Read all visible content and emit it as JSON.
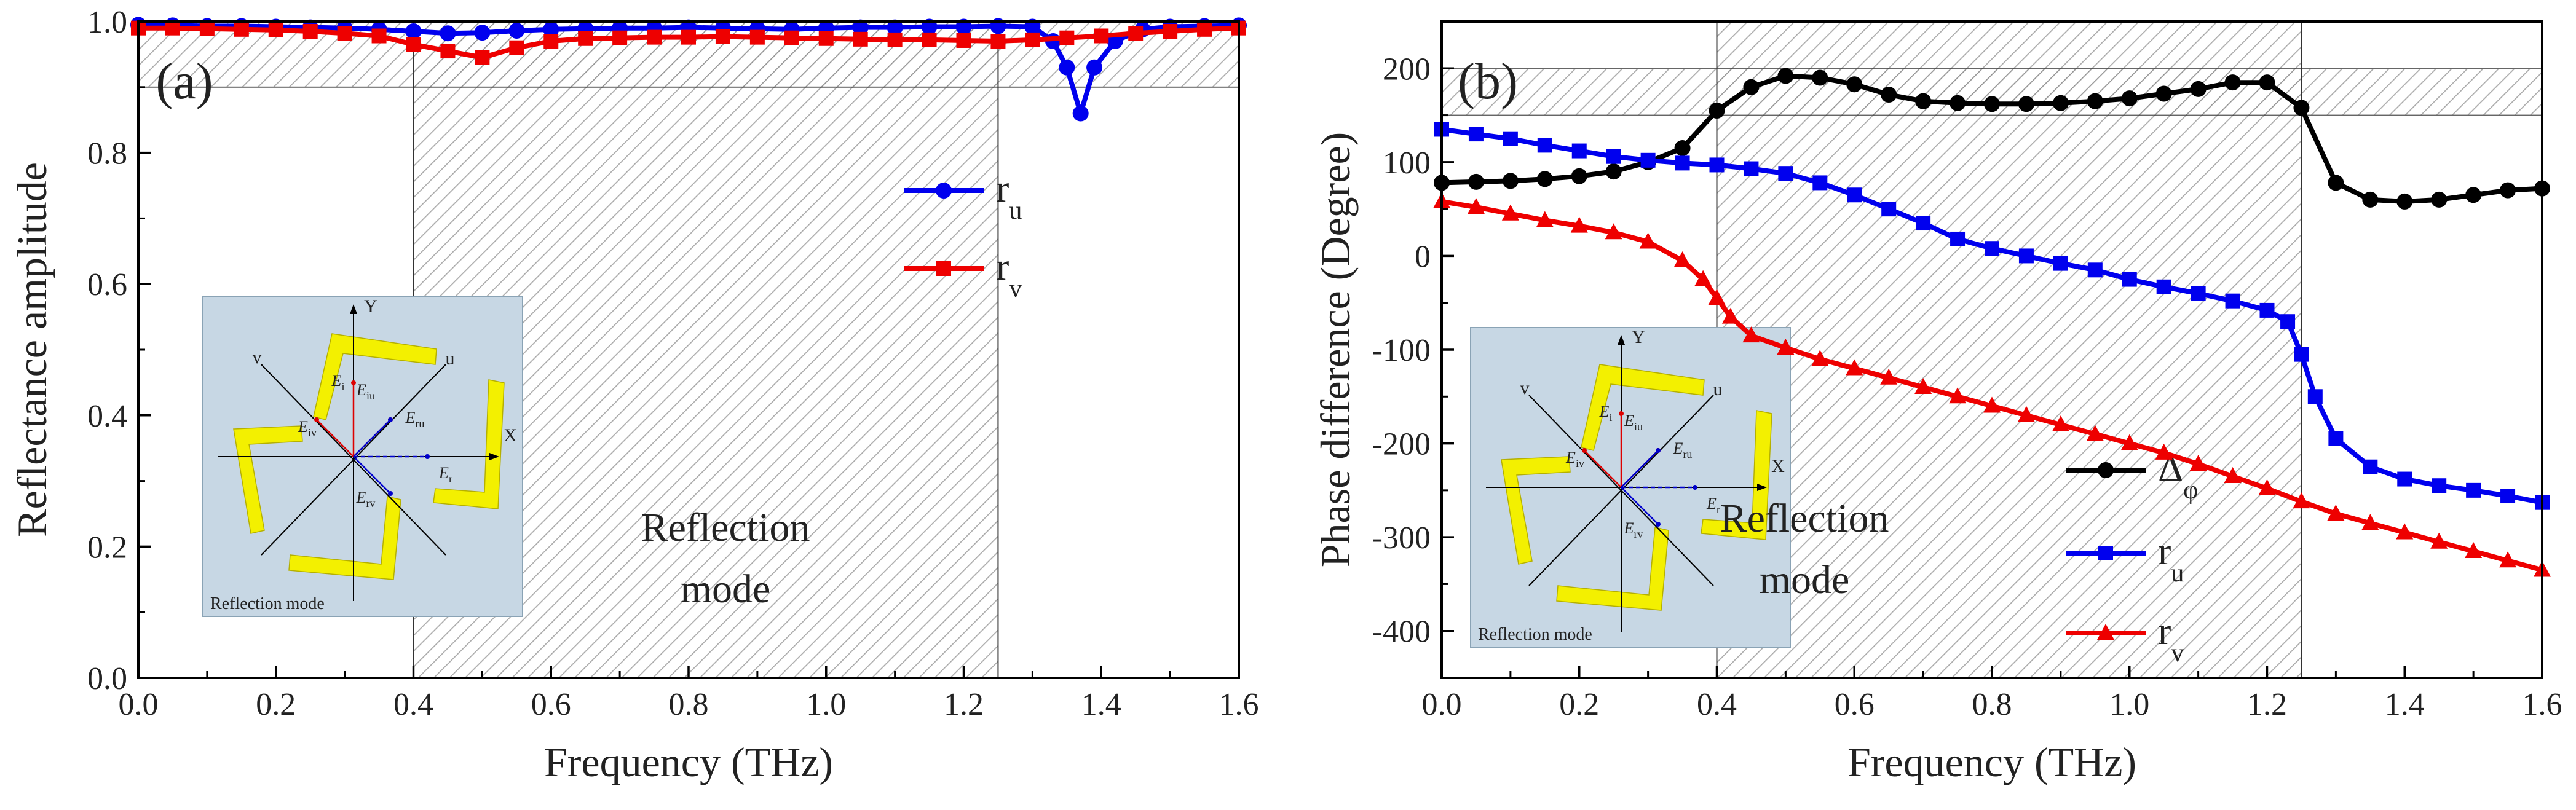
{
  "chart_data": [
    {
      "type": "line",
      "panel_label": "(a)",
      "xlabel": "Frequency (THz)",
      "ylabel": "Reflectance amplitude",
      "xlim": [
        0,
        1.6
      ],
      "ylim": [
        0,
        1.0
      ],
      "xticks": [
        "0.0",
        "0.2",
        "0.4",
        "0.6",
        "0.8",
        "1.0",
        "1.2",
        "1.4",
        "1.6"
      ],
      "yticks": [
        "0.0",
        "0.2",
        "0.4",
        "0.6",
        "0.8",
        "1.0"
      ],
      "shaded_band": {
        "y_from": 0.9,
        "y_to": 1.0,
        "hatch": true
      },
      "shaded_region": {
        "x_from": 0.4,
        "x_to": 1.25,
        "hatch": true
      },
      "region_label": [
        "Reflection",
        "mode"
      ],
      "series": [
        {
          "name": "r_u",
          "legend_main": "r",
          "legend_sub": "u",
          "color": "#0000ee",
          "marker": "circle",
          "x": [
            0.0,
            0.05,
            0.1,
            0.15,
            0.2,
            0.25,
            0.3,
            0.35,
            0.4,
            0.45,
            0.5,
            0.55,
            0.6,
            0.65,
            0.7,
            0.75,
            0.8,
            0.85,
            0.9,
            0.95,
            1.0,
            1.05,
            1.1,
            1.15,
            1.2,
            1.25,
            1.3,
            1.33,
            1.35,
            1.37,
            1.39,
            1.42,
            1.46,
            1.5,
            1.55,
            1.6
          ],
          "values": [
            0.995,
            0.994,
            0.993,
            0.993,
            0.992,
            0.991,
            0.99,
            0.988,
            0.985,
            0.982,
            0.983,
            0.986,
            0.988,
            0.989,
            0.99,
            0.99,
            0.991,
            0.99,
            0.989,
            0.988,
            0.99,
            0.991,
            0.991,
            0.992,
            0.992,
            0.993,
            0.992,
            0.97,
            0.93,
            0.86,
            0.93,
            0.97,
            0.988,
            0.992,
            0.993,
            0.994
          ]
        },
        {
          "name": "r_v",
          "legend_main": "r",
          "legend_sub": "v",
          "color": "#ee0000",
          "marker": "square",
          "x": [
            0.0,
            0.05,
            0.1,
            0.15,
            0.2,
            0.25,
            0.3,
            0.35,
            0.4,
            0.45,
            0.5,
            0.55,
            0.6,
            0.65,
            0.7,
            0.75,
            0.8,
            0.85,
            0.9,
            0.95,
            1.0,
            1.05,
            1.1,
            1.15,
            1.2,
            1.25,
            1.3,
            1.35,
            1.4,
            1.45,
            1.5,
            1.55,
            1.6
          ],
          "values": [
            0.99,
            0.99,
            0.989,
            0.988,
            0.987,
            0.985,
            0.982,
            0.978,
            0.965,
            0.955,
            0.945,
            0.96,
            0.97,
            0.974,
            0.975,
            0.976,
            0.976,
            0.977,
            0.976,
            0.975,
            0.974,
            0.973,
            0.972,
            0.972,
            0.971,
            0.97,
            0.972,
            0.975,
            0.978,
            0.982,
            0.985,
            0.988,
            0.99
          ]
        }
      ],
      "inset": {
        "caption": "Reflection mode",
        "axis_x": "X",
        "axis_y": "Y",
        "axis_u": "u",
        "axis_v": "v",
        "vectors": [
          "E",
          "i",
          "E",
          "iu",
          "E",
          "iv",
          "E",
          "ru",
          "E",
          "rv",
          "E",
          "r"
        ]
      }
    },
    {
      "type": "line",
      "panel_label": "(b)",
      "xlabel": "Frequency (THz)",
      "ylabel": "Phase difference (Degree)",
      "xlim": [
        0,
        1.6
      ],
      "ylim": [
        -450,
        250
      ],
      "xticks": [
        "0.0",
        "0.2",
        "0.4",
        "0.6",
        "0.8",
        "1.0",
        "1.2",
        "1.4",
        "1.6"
      ],
      "yticks": [
        "-400",
        "-300",
        "-200",
        "-100",
        "0",
        "100",
        "200"
      ],
      "shaded_band": {
        "y_from": 150,
        "y_to": 200,
        "hatch": true
      },
      "shaded_region": {
        "x_from": 0.4,
        "x_to": 1.25,
        "hatch": true
      },
      "region_label": [
        "Reflection",
        "mode"
      ],
      "series": [
        {
          "name": "Delta_phi",
          "legend_main": "Δ",
          "legend_sub": "φ",
          "color": "#000000",
          "marker": "circle",
          "x": [
            0.0,
            0.05,
            0.1,
            0.15,
            0.2,
            0.25,
            0.3,
            0.35,
            0.4,
            0.45,
            0.5,
            0.55,
            0.6,
            0.65,
            0.7,
            0.75,
            0.8,
            0.85,
            0.9,
            0.95,
            1.0,
            1.05,
            1.1,
            1.15,
            1.2,
            1.25,
            1.3,
            1.35,
            1.4,
            1.45,
            1.5,
            1.55,
            1.6
          ],
          "values": [
            78,
            79,
            80,
            82,
            85,
            90,
            100,
            115,
            155,
            180,
            192,
            190,
            183,
            172,
            165,
            163,
            162,
            162,
            163,
            165,
            168,
            173,
            178,
            185,
            185,
            158,
            78,
            60,
            58,
            60,
            65,
            70,
            72
          ]
        },
        {
          "name": "r_u",
          "legend_main": "r",
          "legend_sub": "u",
          "color": "#0000ee",
          "marker": "square",
          "x": [
            0.0,
            0.05,
            0.1,
            0.15,
            0.2,
            0.25,
            0.3,
            0.35,
            0.4,
            0.45,
            0.5,
            0.55,
            0.6,
            0.65,
            0.7,
            0.75,
            0.8,
            0.85,
            0.9,
            0.95,
            1.0,
            1.05,
            1.1,
            1.15,
            1.2,
            1.23,
            1.25,
            1.27,
            1.3,
            1.35,
            1.4,
            1.45,
            1.5,
            1.55,
            1.6
          ],
          "values": [
            135,
            130,
            125,
            118,
            112,
            106,
            102,
            99,
            97,
            93,
            88,
            78,
            65,
            50,
            35,
            18,
            8,
            0,
            -8,
            -15,
            -25,
            -33,
            -40,
            -48,
            -58,
            -70,
            -105,
            -150,
            -195,
            -225,
            -238,
            -245,
            -250,
            -256,
            -263
          ]
        },
        {
          "name": "r_v",
          "legend_main": "r",
          "legend_sub": "v",
          "color": "#ee0000",
          "marker": "triangle",
          "x": [
            0.0,
            0.05,
            0.1,
            0.15,
            0.2,
            0.25,
            0.3,
            0.35,
            0.38,
            0.4,
            0.42,
            0.45,
            0.5,
            0.55,
            0.6,
            0.65,
            0.7,
            0.75,
            0.8,
            0.85,
            0.9,
            0.95,
            1.0,
            1.05,
            1.1,
            1.15,
            1.2,
            1.25,
            1.3,
            1.35,
            1.4,
            1.45,
            1.5,
            1.55,
            1.6
          ],
          "values": [
            58,
            52,
            45,
            38,
            32,
            25,
            15,
            -5,
            -25,
            -45,
            -65,
            -85,
            -98,
            -110,
            -120,
            -130,
            -140,
            -150,
            -160,
            -170,
            -180,
            -190,
            -200,
            -210,
            -222,
            -235,
            -248,
            -262,
            -275,
            -285,
            -295,
            -305,
            -315,
            -325,
            -335
          ]
        }
      ],
      "inset": {
        "caption": "Reflection mode",
        "axis_x": "X",
        "axis_y": "Y",
        "axis_u": "u",
        "axis_v": "v",
        "vectors": [
          "E",
          "i",
          "E",
          "iu",
          "E",
          "iv",
          "E",
          "ru",
          "E",
          "rv",
          "E",
          "r"
        ]
      }
    }
  ]
}
